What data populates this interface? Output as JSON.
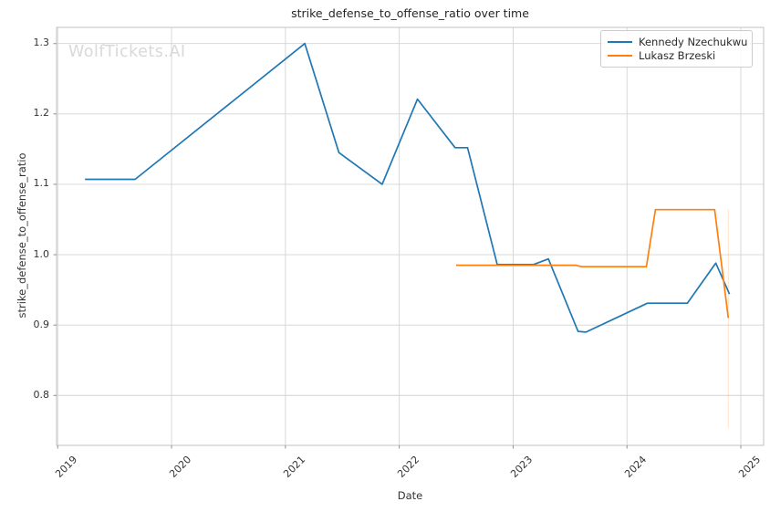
{
  "title": "strike_defense_to_offense_ratio over time",
  "watermark": "WolfTickets.AI",
  "chart_data": {
    "type": "line",
    "title": "strike_defense_to_offense_ratio over time",
    "xlabel": "Date",
    "ylabel": "strike_defense_to_offense_ratio",
    "xlim": [
      2018.99,
      2025.2
    ],
    "ylim": [
      0.729,
      1.323
    ],
    "x_ticks": [
      2019,
      2020,
      2021,
      2022,
      2023,
      2024,
      2025
    ],
    "y_ticks": [
      0.8,
      0.9,
      1.0,
      1.1,
      1.2,
      1.3
    ],
    "grid": true,
    "legend_position": "upper right",
    "series": [
      {
        "name": "Kennedy Nzechukwu",
        "color": "#1f77b4",
        "points": [
          [
            2019.24,
            1.107
          ],
          [
            2019.68,
            1.107
          ],
          [
            2021.17,
            1.3
          ],
          [
            2021.47,
            1.145
          ],
          [
            2021.85,
            1.1
          ],
          [
            2022.16,
            1.221
          ],
          [
            2022.49,
            1.152
          ],
          [
            2022.6,
            1.152
          ],
          [
            2022.86,
            0.986
          ],
          [
            2023.18,
            0.986
          ],
          [
            2023.31,
            0.994
          ],
          [
            2023.57,
            0.891
          ],
          [
            2023.64,
            0.89
          ],
          [
            2024.18,
            0.931
          ],
          [
            2024.53,
            0.931
          ],
          [
            2024.78,
            0.988
          ],
          [
            2024.9,
            0.944
          ]
        ]
      },
      {
        "name": "Lukasz Brzeski",
        "color": "#ff7f0e",
        "points": [
          [
            2022.5,
            0.985
          ],
          [
            2023.55,
            0.985
          ],
          [
            2023.6,
            0.983
          ],
          [
            2024.17,
            0.983
          ],
          [
            2024.25,
            1.064
          ],
          [
            2024.77,
            1.064
          ],
          [
            2024.89,
            0.91
          ]
        ]
      }
    ],
    "annotations": [
      {
        "type": "vline",
        "x": 2024.89,
        "y_top": 1.064,
        "y_bottom": 0.754,
        "color": "#ff7f0e",
        "opacity": 0.22
      }
    ]
  },
  "legend": {
    "items": [
      {
        "label": "Kennedy Nzechukwu",
        "color": "#1f77b4"
      },
      {
        "label": "Lukasz Brzeski",
        "color": "#ff7f0e"
      }
    ]
  }
}
